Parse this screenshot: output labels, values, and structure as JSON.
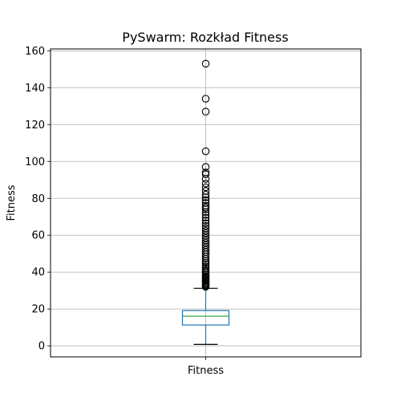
{
  "chart_data": {
    "type": "boxplot",
    "title": "PySwarm: Rozkład Fitness",
    "xlabel": "",
    "ylabel": "Fitness",
    "categories": [
      "Fitness"
    ],
    "ylim": [
      -6,
      161
    ],
    "yticks": [
      0,
      20,
      40,
      60,
      80,
      100,
      120,
      140,
      160
    ],
    "grid": true,
    "box": {
      "whisker_low": 0.8,
      "q1": 11.3,
      "median": 16.1,
      "q3": 19.1,
      "whisker_high": 31.2
    },
    "outliers": [
      32.0,
      32.5,
      33.0,
      33.5,
      34.0,
      34.6,
      35.2,
      35.8,
      36.4,
      37.0,
      37.8,
      38.6,
      39.4,
      40.2,
      41.0,
      42.0,
      43.0,
      44.0,
      45.0,
      46.0,
      47.2,
      48.4,
      49.6,
      50.8,
      52.0,
      53.3,
      54.6,
      55.9,
      57.2,
      58.5,
      59.8,
      61.1,
      62.4,
      63.7,
      65.0,
      66.5,
      68.0,
      69.5,
      71.0,
      72.5,
      74.0,
      75.0,
      76.0,
      77.5,
      79.0,
      80.5,
      82.0,
      84.0,
      86.0,
      88.0,
      90.5,
      93.0,
      94.0,
      97.0,
      105.5,
      127.0,
      134.0,
      153.0
    ],
    "colors": {
      "box": "#1f77b4",
      "median": "#2ca02c",
      "grid": "#b0b0b0",
      "outlier": "#000000"
    }
  }
}
